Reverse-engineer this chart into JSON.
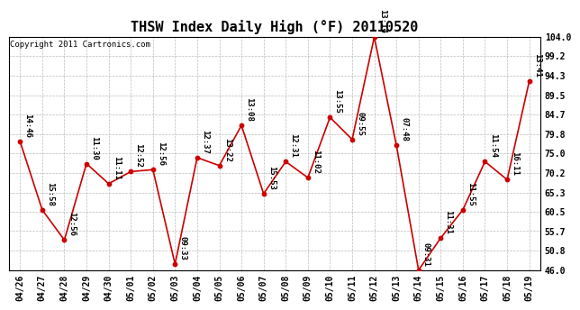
{
  "title": "THSW Index Daily High (°F) 20110520",
  "copyright": "Copyright 2011 Cartronics.com",
  "dates": [
    "04/26",
    "04/27",
    "04/28",
    "04/29",
    "04/30",
    "05/01",
    "05/02",
    "05/03",
    "05/04",
    "05/05",
    "05/06",
    "05/07",
    "05/08",
    "05/09",
    "05/10",
    "05/11",
    "05/12",
    "05/13",
    "05/14",
    "05/15",
    "05/16",
    "05/17",
    "05/18",
    "05/19"
  ],
  "values": [
    78.0,
    61.0,
    53.5,
    72.5,
    67.5,
    70.5,
    71.0,
    47.5,
    74.0,
    72.0,
    82.0,
    65.0,
    73.0,
    69.0,
    84.0,
    78.5,
    104.0,
    77.0,
    46.0,
    54.0,
    61.0,
    73.0,
    68.5,
    93.0
  ],
  "times": [
    "14:46",
    "15:58",
    "12:56",
    "11:30",
    "11:11",
    "12:52",
    "12:56",
    "09:33",
    "12:37",
    "13:22",
    "13:08",
    "15:53",
    "12:31",
    "11:02",
    "13:55",
    "09:55",
    "13:14",
    "07:48",
    "09:31",
    "11:31",
    "11:55",
    "11:54",
    "16:11",
    "13:41"
  ],
  "ylim": [
    46.0,
    104.0
  ],
  "yticks": [
    46.0,
    50.8,
    55.7,
    60.5,
    65.3,
    70.2,
    75.0,
    79.8,
    84.7,
    89.5,
    94.3,
    99.2,
    104.0
  ],
  "line_color": "#cc0000",
  "marker_color": "#cc0000",
  "bg_color": "#ffffff",
  "grid_color": "#bbbbbb",
  "title_fontsize": 11,
  "label_fontsize": 6.5,
  "tick_fontsize": 7,
  "copyright_fontsize": 6.5
}
